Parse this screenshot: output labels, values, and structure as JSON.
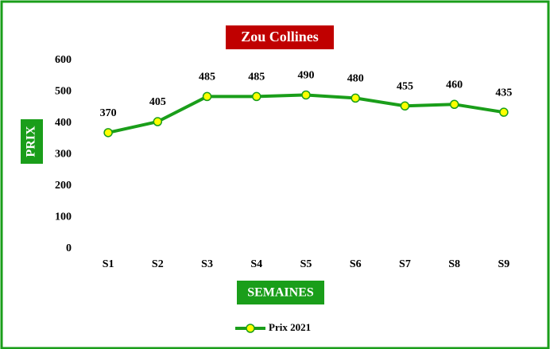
{
  "chart_data": {
    "type": "line",
    "title": "Zou Collines",
    "x_label": "SEMAINES",
    "y_label": "PRIX",
    "categories": [
      "S1",
      "S2",
      "S3",
      "S4",
      "S5",
      "S6",
      "S7",
      "S8",
      "S9"
    ],
    "series": [
      {
        "name": "Prix 2021",
        "color": "#1a9e1a",
        "marker_color": "#ffff00",
        "values": [
          370,
          405,
          485,
          485,
          490,
          480,
          455,
          460,
          435
        ]
      }
    ],
    "ylim": [
      0,
      600
    ],
    "yticks": [
      0,
      100,
      200,
      300,
      400,
      500,
      600
    ],
    "grid": false,
    "legend": "bottom"
  }
}
